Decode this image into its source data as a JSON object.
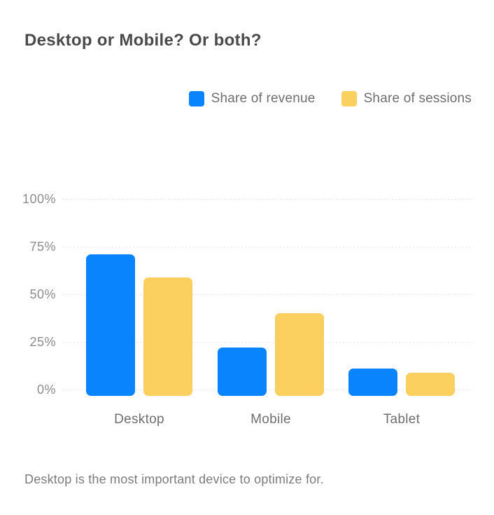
{
  "title": "Desktop or Mobile? Or both?",
  "caption": "Desktop is the most important device to optimize for.",
  "chart_data": {
    "type": "bar",
    "title": "Desktop or Mobile? Or both?",
    "categories": [
      "Desktop",
      "Mobile",
      "Tablet"
    ],
    "series": [
      {
        "name": "Share of revenue",
        "color": "#0a84fc",
        "values": [
          71,
          22,
          11
        ]
      },
      {
        "name": "Share of sessions",
        "color": "#fcd05f",
        "values": [
          59,
          40,
          9
        ]
      }
    ],
    "yticks": [
      {
        "label": "100%",
        "value": 100
      },
      {
        "label": "75%",
        "value": 75
      },
      {
        "label": "50%",
        "value": 50
      },
      {
        "label": "25%",
        "value": 25
      },
      {
        "label": "0%",
        "value": 0
      }
    ],
    "ylim": [
      0,
      100
    ],
    "ylabel": "",
    "xlabel": "",
    "grid": "horizontal-dotted",
    "legend_position": "top-right",
    "caption": "Desktop is the most important device to optimize for."
  }
}
